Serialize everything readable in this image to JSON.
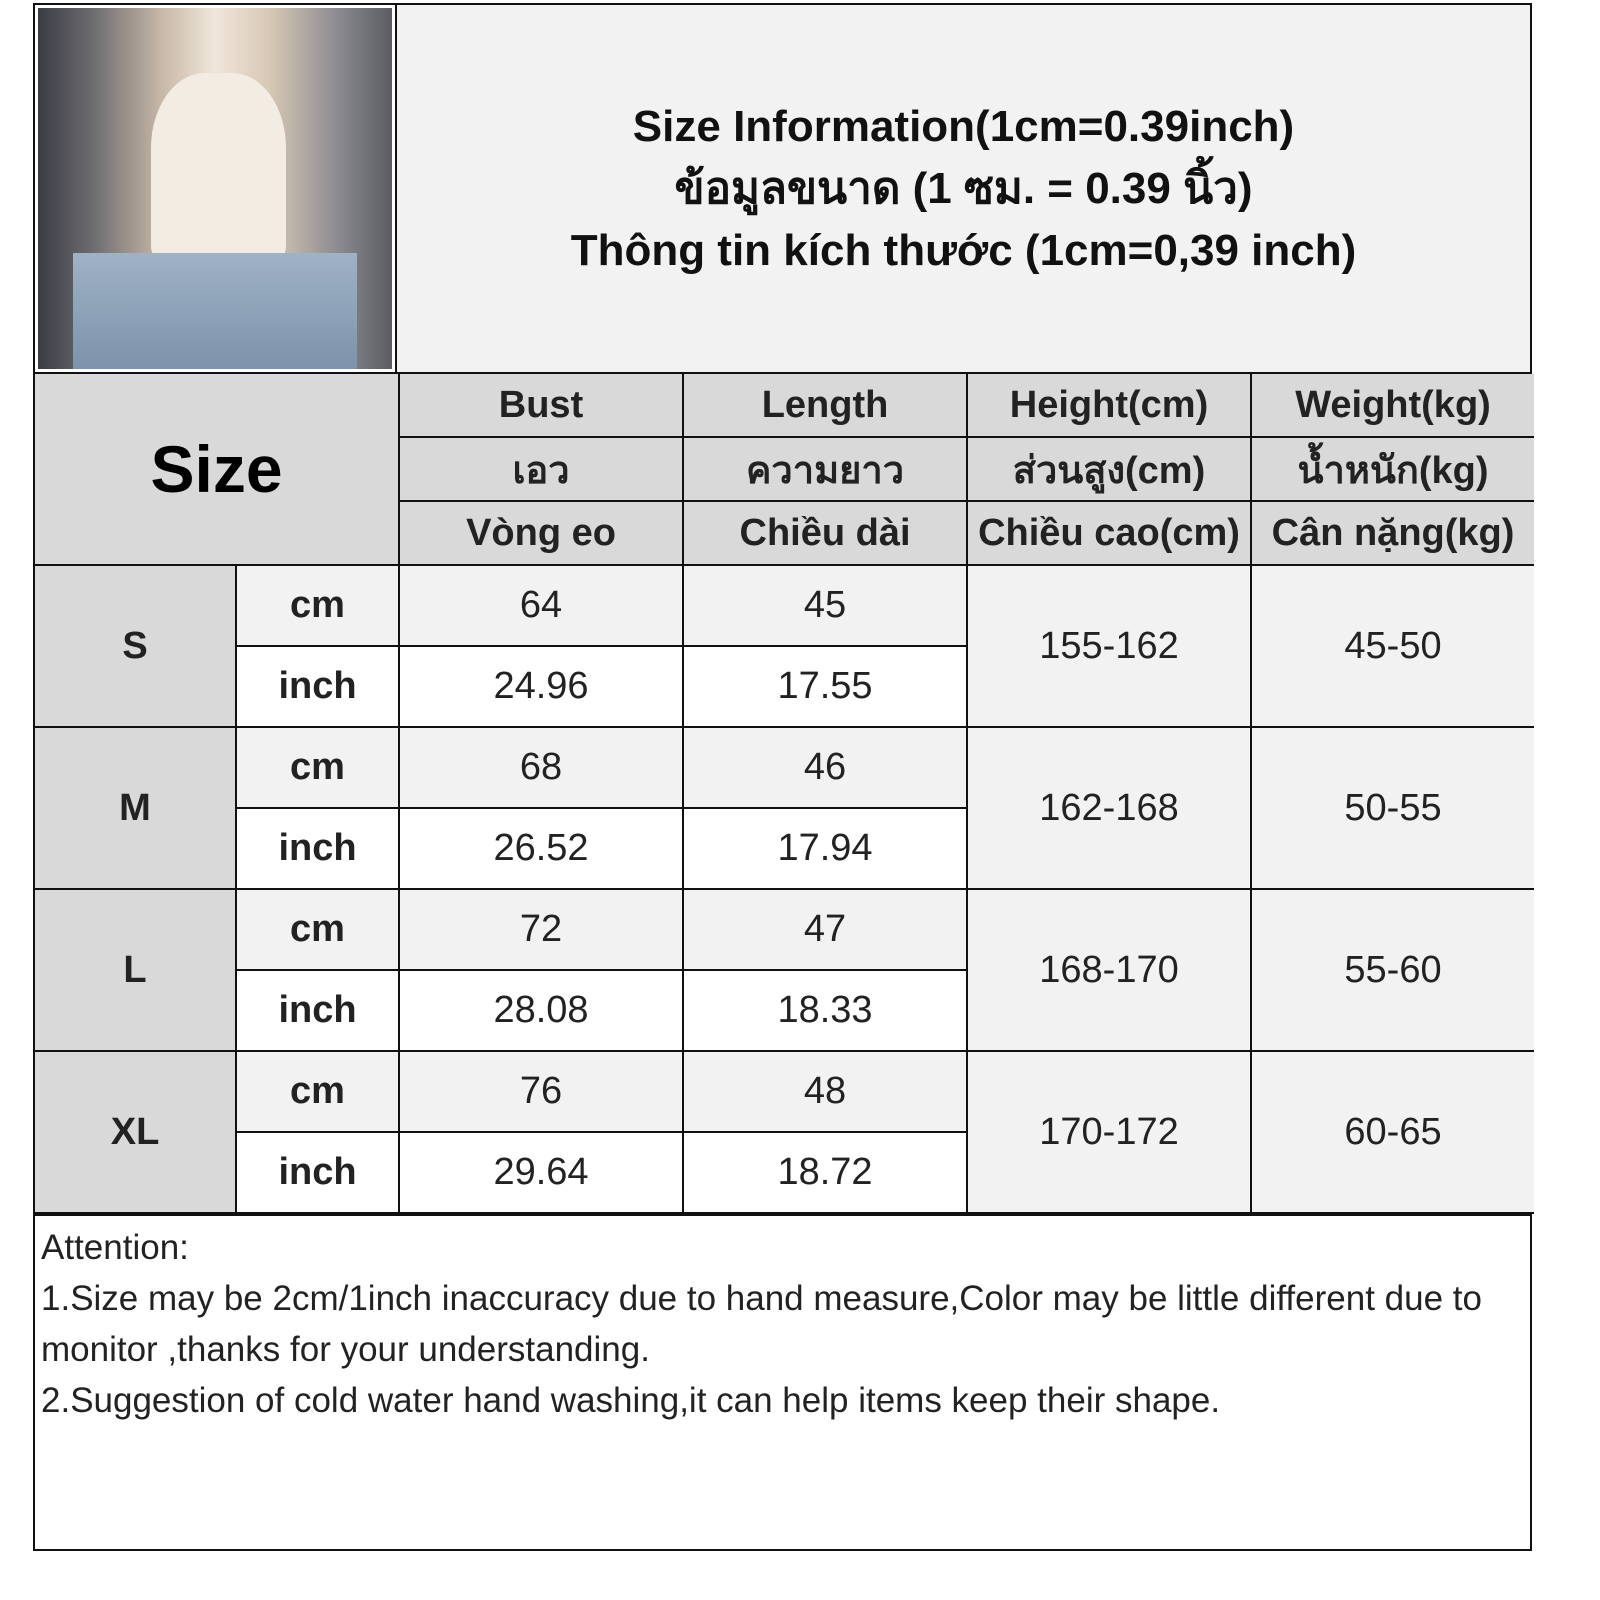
{
  "title_lines": [
    "Size Information(1cm=0.39inch)",
    "ข้อมูลขนาด (1 ซม. = 0.39 นิ้ว)",
    "Thông tin kích thước (1cm=0,39 inch)"
  ],
  "photo": {
    "subject": "model-wearing-white-tank-top"
  },
  "table": {
    "size_header": "Size",
    "columns": [
      {
        "en": "Bust",
        "th": "เอว",
        "vi": "Vòng eo"
      },
      {
        "en": "Length",
        "th": "ความยาว",
        "vi": "Chiều dài"
      },
      {
        "en": "Height(cm)",
        "th": "ส่วนสูง(cm)",
        "vi": "Chiều cao(cm)"
      },
      {
        "en": "Weight(kg)",
        "th": "น้ำหนัก(kg)",
        "vi": "Cân nặng(kg)"
      }
    ],
    "unit_cm": "cm",
    "unit_inch": "inch",
    "rows": [
      {
        "size": "S",
        "bust_cm": "64",
        "bust_in": "24.96",
        "length_cm": "45",
        "length_in": "17.55",
        "height": "155-162",
        "weight": "45-50"
      },
      {
        "size": "M",
        "bust_cm": "68",
        "bust_in": "26.52",
        "length_cm": "46",
        "length_in": "17.94",
        "height": "162-168",
        "weight": "50-55"
      },
      {
        "size": "L",
        "bust_cm": "72",
        "bust_in": "28.08",
        "length_cm": "47",
        "length_in": "18.33",
        "height": "168-170",
        "weight": "55-60"
      },
      {
        "size": "XL",
        "bust_cm": "76",
        "bust_in": "29.64",
        "length_cm": "48",
        "length_in": "18.72",
        "height": "170-172",
        "weight": "60-65"
      }
    ]
  },
  "notes": {
    "heading": "Attention:",
    "line1": "1.Size may be 2cm/1inch inaccuracy due to hand measure,Color may be little different due to monitor ,thanks for your understanding.",
    "line2": "2.Suggestion of cold water hand washing,it can help items keep their shape."
  },
  "colors": {
    "header_gray": "#d9d9d9",
    "light_gray": "#f2f2f2",
    "border": "#111111"
  }
}
